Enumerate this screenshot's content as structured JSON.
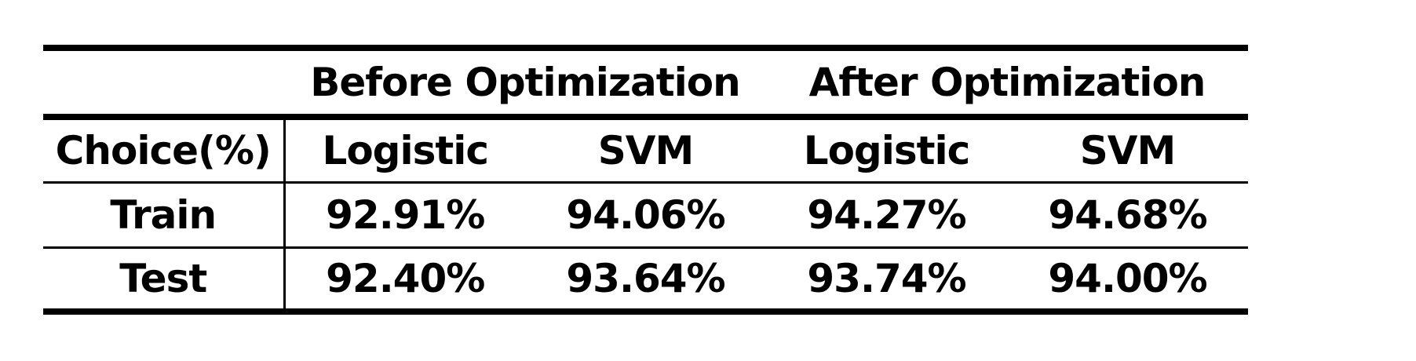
{
  "table": {
    "group_headers": [
      "Before Optimization",
      "After Optimization"
    ],
    "corner_label": "Choice(%)",
    "column_headers": [
      "Logistic",
      "SVM",
      "Logistic",
      "SVM"
    ],
    "rows": [
      {
        "label": "Train",
        "values": [
          "92.91%",
          "94.06%",
          "94.27%",
          "94.68%"
        ]
      },
      {
        "label": "Test",
        "values": [
          "92.40%",
          "93.64%",
          "93.74%",
          "94.00%"
        ]
      }
    ]
  }
}
